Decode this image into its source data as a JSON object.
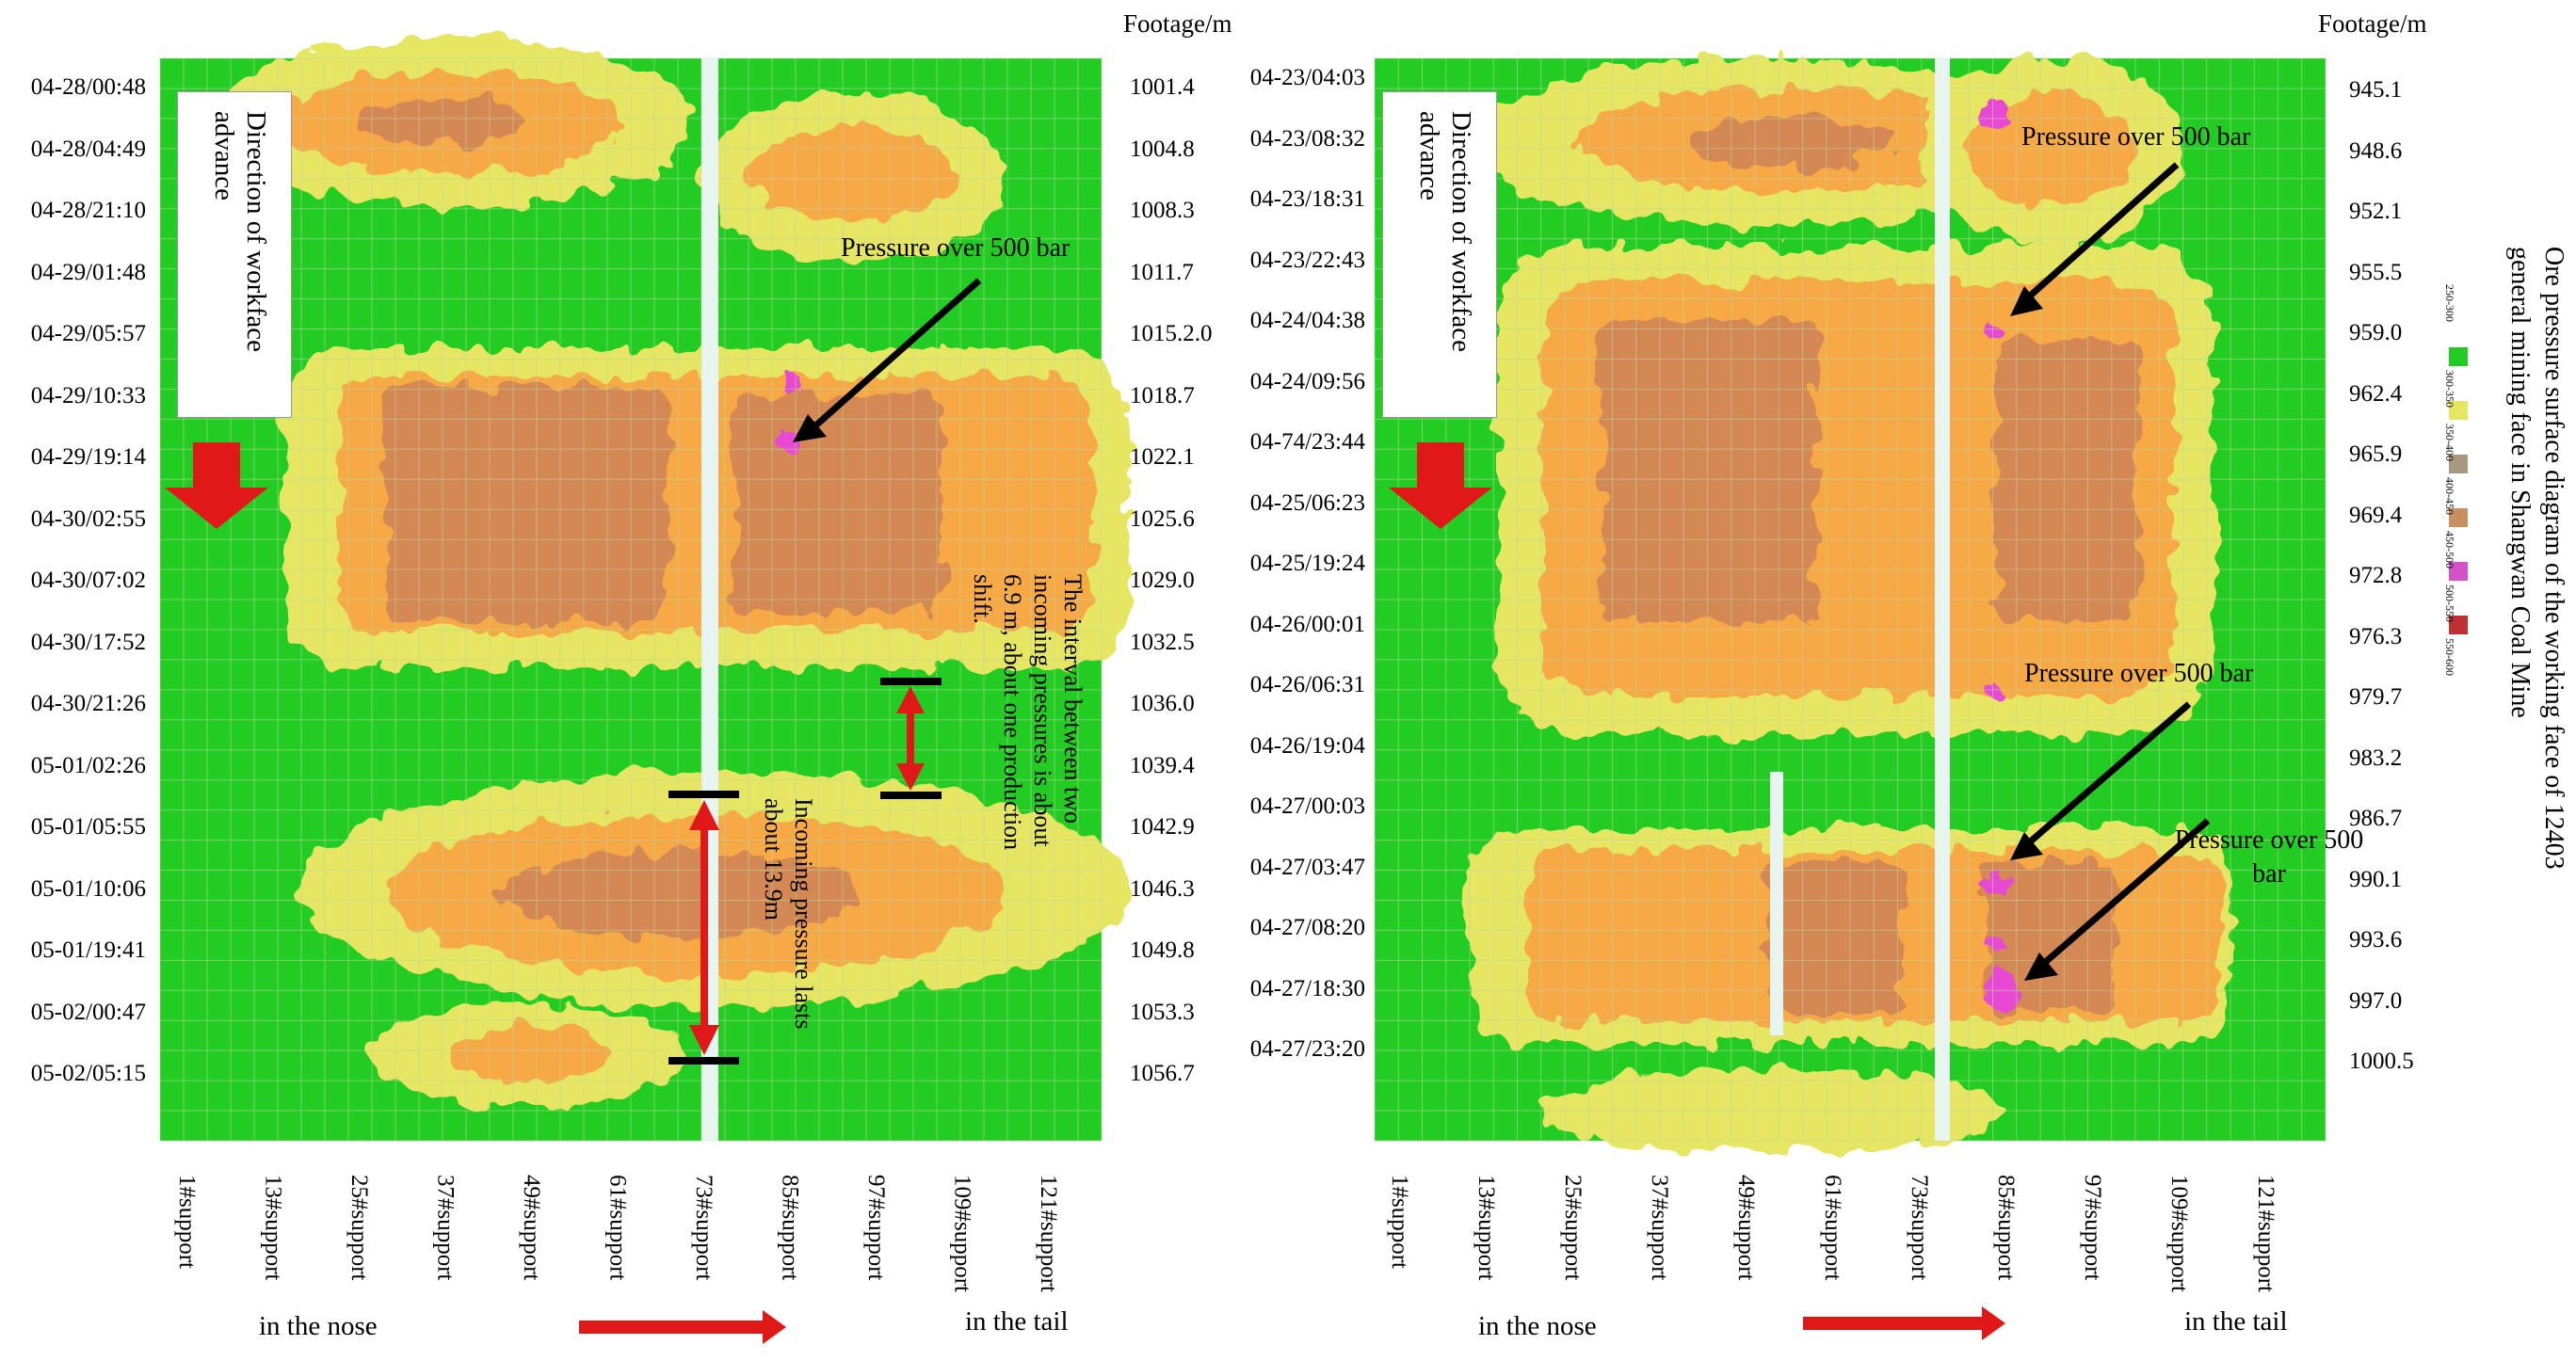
{
  "colors": {
    "green": "#22cc22",
    "yellow": "#e6e662",
    "orange": "#f6a944",
    "brown": "#d48852",
    "magenta": "#e84ad4",
    "arrow_red": "#e01818",
    "grid": "#bcd8a0"
  },
  "legend": {
    "title": "Ore pressure surface diagram of the working face of 12403 general mining face in Shangwan Coal Mine",
    "items": [
      {
        "label": "250-300",
        "color": "#ffffff"
      },
      {
        "label": "300-350",
        "color": "#22cc22"
      },
      {
        "label": "350-400",
        "color": "#e6e662"
      },
      {
        "label": "400-450",
        "color": "#a89880"
      },
      {
        "label": "450-500",
        "color": "#c8905e"
      },
      {
        "label": "500-550",
        "color": "#d452c8"
      },
      {
        "label": "550-600",
        "color": "#c03030"
      }
    ]
  },
  "chart_data": [
    {
      "type": "heatmap",
      "title": "",
      "right_axis_title": "Footage/m",
      "direction_label": "Direction of workface advance",
      "x_labels": [
        "1#support",
        "13#support",
        "25#support",
        "37#support",
        "49#support",
        "61#support",
        "73#support",
        "85#support",
        "97#support",
        "109#support",
        "121#support"
      ],
      "time_labels": [
        "04-28/00:48",
        "04-28/04:49",
        "04-28/21:10",
        "04-29/01:48",
        "04-29/05:57",
        "04-29/10:33",
        "04-29/19:14",
        "04-30/02:55",
        "04-30/07:02",
        "04-30/17:52",
        "04-30/21:26",
        "05-01/02:26",
        "05-01/05:55",
        "05-01/10:06",
        "05-01/19:41",
        "05-02/00:47",
        "05-02/05:15"
      ],
      "footage_labels": [
        "1001.4",
        "1004.8",
        "1008.3",
        "1011.7",
        "1015.2.0",
        "1018.7",
        "1022.1",
        "1025.6",
        "1029.0",
        "1032.5",
        "1036.0",
        "1039.4",
        "1042.9",
        "1046.3",
        "1049.8",
        "1053.3",
        "1056.7"
      ],
      "nose_label": "in the nose",
      "tail_label": "in the tail",
      "annotations": [
        {
          "text": "Pressure over 500 bar"
        },
        {
          "text": "Incoming pressure lasts about 13.9m"
        },
        {
          "text": "The interval between two incoming pressures is about 6.9 m, about one production shift."
        }
      ]
    },
    {
      "type": "heatmap",
      "title": "",
      "right_axis_title": "Footage/m",
      "direction_label": "Direction of workface advance",
      "x_labels": [
        "1#support",
        "13#support",
        "25#support",
        "37#support",
        "49#support",
        "61#support",
        "73#support",
        "85#support",
        "97#support",
        "109#support",
        "121#support"
      ],
      "time_labels": [
        "04-23/04:03",
        "04-23/08:32",
        "04-23/18:31",
        "04-23/22:43",
        "04-24/04:38",
        "04-24/09:56",
        "04-74/23:44",
        "04-25/06:23",
        "04-25/19:24",
        "04-26/00:01",
        "04-26/06:31",
        "04-26/19:04",
        "04-27/00:03",
        "04-27/03:47",
        "04-27/08:20",
        "04-27/18:30",
        "04-27/23:20"
      ],
      "footage_labels": [
        "945.1",
        "948.6",
        "952.1",
        "955.5",
        "959.0",
        "962.4",
        "965.9",
        "969.4",
        "972.8",
        "976.3",
        "979.7",
        "983.2",
        "986.7",
        "990.1",
        "993.6",
        "997.0",
        "1000.5"
      ],
      "nose_label": "in the nose",
      "tail_label": "in the tail",
      "annotations": [
        {
          "text": "Pressure over 500 bar"
        },
        {
          "text": "Pressure over 500 bar"
        },
        {
          "text": "Pressure over 500 bar"
        }
      ]
    }
  ]
}
